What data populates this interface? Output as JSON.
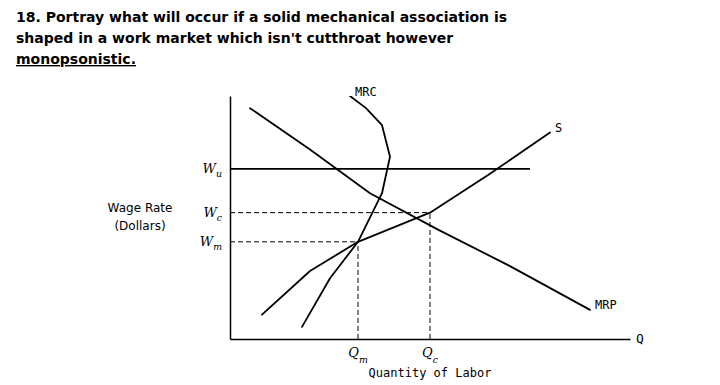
{
  "chart_data": {
    "type": "line",
    "title": [
      "18. Portray what will occur if a solid mechanical association is",
      "shaped in a work market which isn't cutthroat however",
      "monopsonistic."
    ],
    "x_label": "Quantity of Labor",
    "y_label": [
      "Wage Rate",
      "(Dollars)"
    ],
    "x_axis_symbol": "Q",
    "color": "#000000",
    "xlim": [
      0,
      10
    ],
    "ylim": [
      0,
      10
    ],
    "tick_labels": false,
    "series": [
      {
        "name": "MRP",
        "x": [
          0.5,
          2.0,
          3.5,
          5.2,
          7.0,
          9.0
        ],
        "values": [
          9.5,
          7.8,
          6.0,
          4.5,
          3.0,
          1.2
        ]
      },
      {
        "name": "S",
        "x": [
          0.8,
          2.0,
          3.2,
          5.0,
          6.5,
          8.0
        ],
        "values": [
          1.0,
          2.8,
          4.0,
          5.2,
          6.8,
          8.5
        ]
      },
      {
        "name": "MRC",
        "x": [
          1.8,
          2.5,
          3.2,
          3.8,
          4.0,
          3.8,
          3.4,
          3.0
        ],
        "values": [
          0.5,
          2.5,
          4.0,
          6.0,
          7.5,
          8.8,
          9.5,
          10.0
        ]
      }
    ],
    "guides": [
      {
        "x": 7.5,
        "y": 7.0,
        "y_label": "Wu",
        "line_style": "solid"
      },
      {
        "x": 5.0,
        "y": 5.2,
        "x_label": "Qc",
        "y_label": "Wc",
        "line_style": "dashed"
      },
      {
        "x": 3.2,
        "y": 4.0,
        "x_label": "Qm",
        "y_label": "Wm",
        "line_style": "dashed"
      }
    ]
  }
}
